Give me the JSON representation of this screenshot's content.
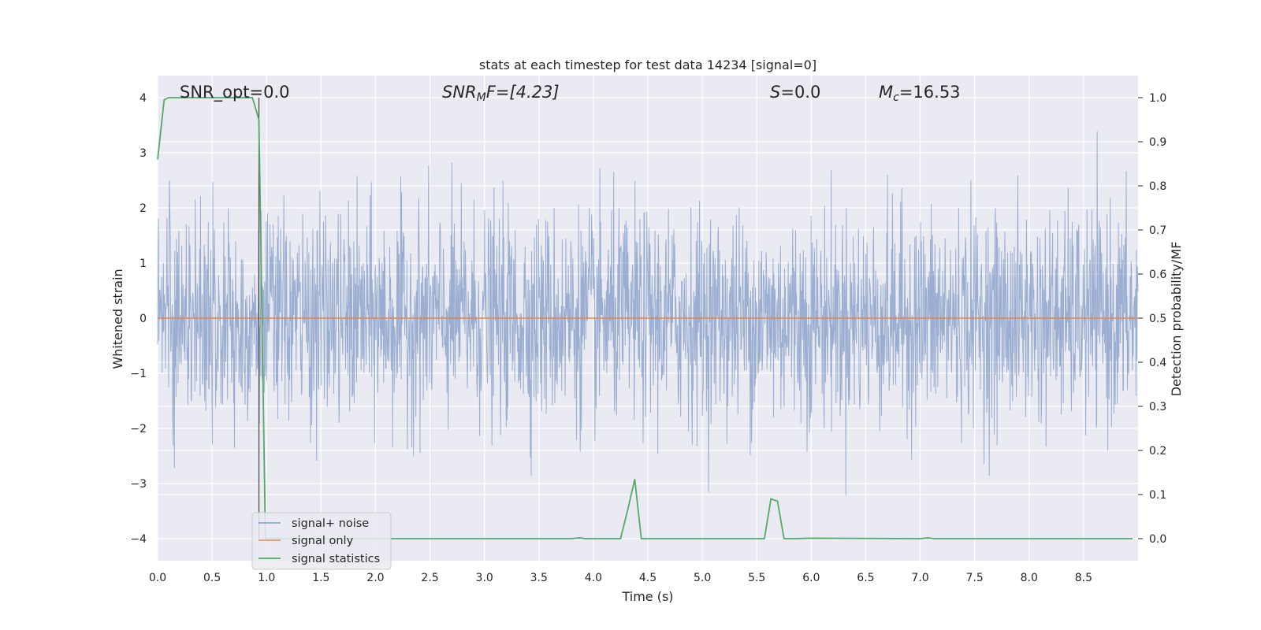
{
  "chart_data": {
    "type": "line",
    "title": "stats at each timestep for test data 14234 [signal=0]",
    "xlabel": "Time (s)",
    "ylabel_left": "Whitened strain",
    "ylabel_right": "Detection probability/MF",
    "xlim": [
      0.0,
      9.0
    ],
    "ylim_left": [
      -4.4,
      4.4
    ],
    "ylim_right": [
      -0.05,
      1.05
    ],
    "xticks": [
      "0.0",
      "0.5",
      "1.0",
      "1.5",
      "2.0",
      "2.5",
      "3.0",
      "3.5",
      "4.0",
      "4.5",
      "5.0",
      "5.5",
      "6.0",
      "6.5",
      "7.0",
      "7.5",
      "8.0",
      "8.5"
    ],
    "xtick_values": [
      0.0,
      0.5,
      1.0,
      1.5,
      2.0,
      2.5,
      3.0,
      3.5,
      4.0,
      4.5,
      5.0,
      5.5,
      6.0,
      6.5,
      7.0,
      7.5,
      8.0,
      8.5
    ],
    "yticks_left": [
      "4",
      "3",
      "2",
      "1",
      "0",
      "−1",
      "−2",
      "−3",
      "−4"
    ],
    "ytick_values_left": [
      4,
      3,
      2,
      1,
      0,
      -1,
      -2,
      -3,
      -4
    ],
    "yticks_right": [
      "1.0",
      "0.9",
      "0.8",
      "0.7",
      "0.6",
      "0.5",
      "0.4",
      "0.3",
      "0.2",
      "0.1",
      "0.0"
    ],
    "ytick_values_right": [
      1.0,
      0.9,
      0.8,
      0.7,
      0.6,
      0.5,
      0.4,
      0.3,
      0.2,
      0.1,
      0.0
    ],
    "annotations": {
      "snr_opt": "SNR_opt=0.0",
      "snr_mf_main": "SNR",
      "snr_mf_sub": "M",
      "snr_mf_rest": "F=[4.23]",
      "s_main": "S",
      "s_rest": "=0.0",
      "mc_main": "M",
      "mc_sub": "c",
      "mc_rest": "=16.53"
    },
    "marker_time": 0.93,
    "series": [
      {
        "name": "signal+ noise",
        "axis": "left",
        "color": "#4c72b0",
        "approx_envelope": {
          "typical_amplitude": 1.6,
          "peak_max": 4.0,
          "peak_min": -3.9
        }
      },
      {
        "name": "signal only",
        "axis": "left",
        "color": "#dd8452",
        "values": "constant 0"
      },
      {
        "name": "signal statistics",
        "axis": "right",
        "color": "#55a868",
        "x": [
          0.0,
          0.06,
          0.1,
          0.2,
          0.5,
          0.8,
          0.87,
          0.93,
          0.99,
          1.05,
          2.0,
          3.0,
          3.8,
          3.87,
          3.93,
          4.0,
          4.25,
          4.32,
          4.38,
          4.44,
          4.6,
          5.0,
          5.57,
          5.63,
          5.69,
          5.75,
          5.85,
          6.0,
          7.0,
          7.07,
          7.13,
          8.0,
          8.95
        ],
        "y": [
          0.86,
          0.995,
          1.0,
          1.0,
          1.0,
          1.0,
          1.0,
          0.95,
          0.0,
          0.0,
          0.0,
          0.0,
          0.0,
          0.002,
          0.0,
          0.0,
          0.0,
          0.07,
          0.135,
          0.0,
          0.0,
          0.0,
          0.0,
          0.09,
          0.085,
          0.0,
          0.0,
          0.001,
          0.0,
          0.002,
          0.0,
          0.0,
          0.0
        ]
      }
    ],
    "legend_position": "lower left"
  }
}
